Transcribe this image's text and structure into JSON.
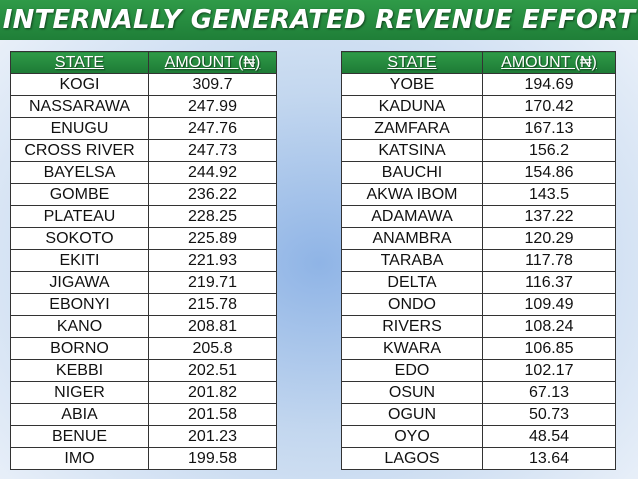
{
  "title": "INTERNALLY GENERATED REVENUE EFFORT",
  "colors": {
    "header_green": "#238a3e",
    "background_blue": "#9dbde8"
  },
  "columns": {
    "state": "STATE",
    "amount": "AMOUNT (₦)"
  },
  "left_table": [
    {
      "state": "KOGI",
      "amount": "309.7"
    },
    {
      "state": "NASSARAWA",
      "amount": "247.99"
    },
    {
      "state": "ENUGU",
      "amount": "247.76"
    },
    {
      "state": "CROSS RIVER",
      "amount": "247.73"
    },
    {
      "state": "BAYELSA",
      "amount": "244.92"
    },
    {
      "state": "GOMBE",
      "amount": "236.22"
    },
    {
      "state": "PLATEAU",
      "amount": "228.25"
    },
    {
      "state": "SOKOTO",
      "amount": "225.89"
    },
    {
      "state": "EKITI",
      "amount": "221.93"
    },
    {
      "state": "JIGAWA",
      "amount": "219.71"
    },
    {
      "state": "EBONYI",
      "amount": "215.78"
    },
    {
      "state": "KANO",
      "amount": "208.81"
    },
    {
      "state": "BORNO",
      "amount": "205.8"
    },
    {
      "state": "KEBBI",
      "amount": "202.51"
    },
    {
      "state": "NIGER",
      "amount": "201.82"
    },
    {
      "state": "ABIA",
      "amount": "201.58"
    },
    {
      "state": "BENUE",
      "amount": "201.23"
    },
    {
      "state": "IMO",
      "amount": "199.58"
    }
  ],
  "right_table": [
    {
      "state": "YOBE",
      "amount": "194.69"
    },
    {
      "state": "KADUNA",
      "amount": "170.42"
    },
    {
      "state": "ZAMFARA",
      "amount": "167.13"
    },
    {
      "state": "KATSINA",
      "amount": "156.2"
    },
    {
      "state": "BAUCHI",
      "amount": "154.86"
    },
    {
      "state": "AKWA IBOM",
      "amount": "143.5"
    },
    {
      "state": "ADAMAWA",
      "amount": "137.22"
    },
    {
      "state": "ANAMBRA",
      "amount": "120.29"
    },
    {
      "state": "TARABA",
      "amount": "117.78"
    },
    {
      "state": "DELTA",
      "amount": "116.37"
    },
    {
      "state": "ONDO",
      "amount": "109.49"
    },
    {
      "state": "RIVERS",
      "amount": "108.24"
    },
    {
      "state": "KWARA",
      "amount": "106.85"
    },
    {
      "state": "EDO",
      "amount": "102.17"
    },
    {
      "state": "OSUN",
      "amount": "67.13"
    },
    {
      "state": "OGUN",
      "amount": "50.73"
    },
    {
      "state": "OYO",
      "amount": "48.54"
    },
    {
      "state": "LAGOS",
      "amount": "13.64"
    }
  ]
}
